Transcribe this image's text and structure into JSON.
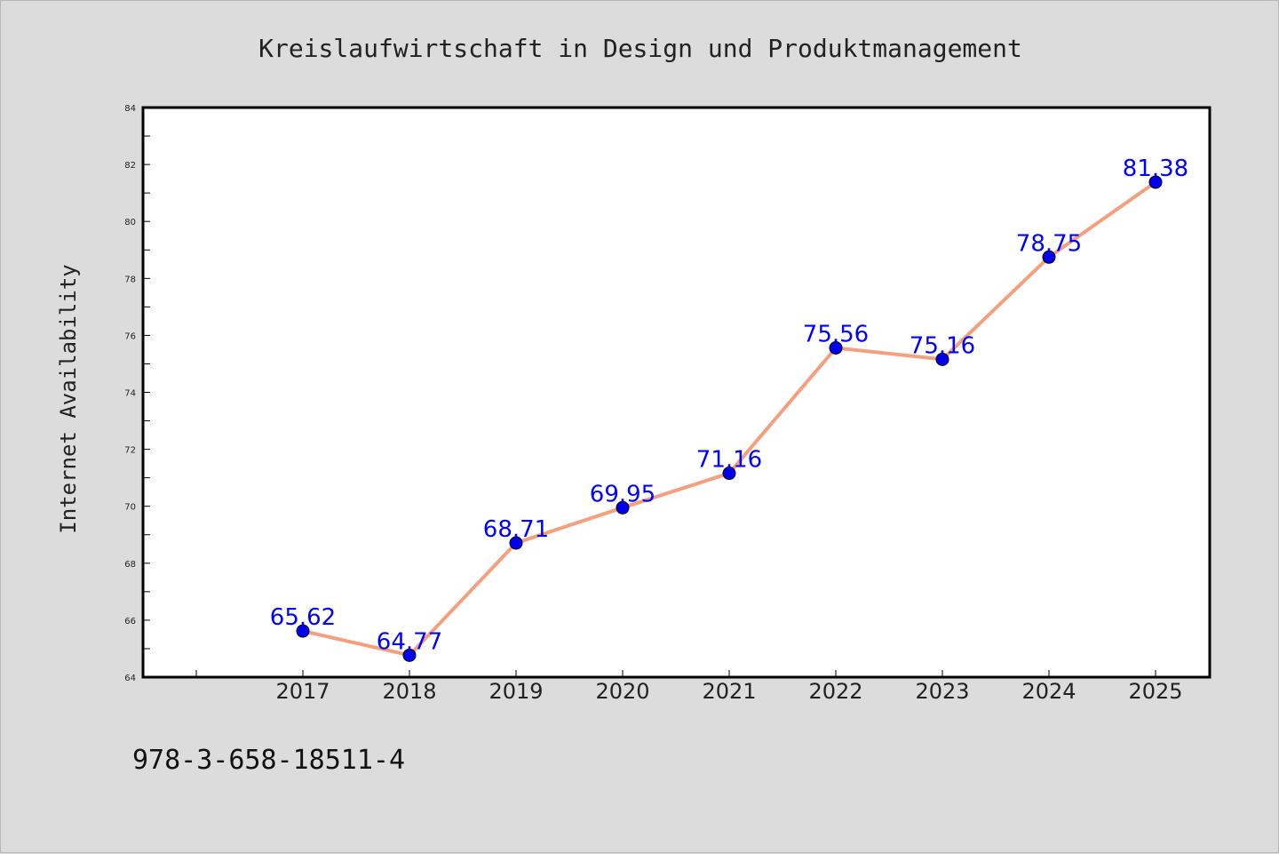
{
  "chart_data": {
    "type": "line",
    "title": "Kreislaufwirtschaft in Design und Produktmanagement",
    "xlabel": "",
    "ylabel": "Internet Availability",
    "x": [
      "2017",
      "2018",
      "2019",
      "2020",
      "2021",
      "2022",
      "2023",
      "2024",
      "2025"
    ],
    "series": [
      {
        "values": [
          65.62,
          64.77,
          68.71,
          69.95,
          71.16,
          75.56,
          75.16,
          78.75,
          81.38
        ],
        "labels": [
          "65.62",
          "64.77",
          "68.71",
          "69.95",
          "71.16",
          "75.56",
          "75.16",
          "78.75",
          "81.38"
        ],
        "line_color": "#f4a07e",
        "marker_color": "#0000ee"
      }
    ],
    "ylim": [
      64,
      84
    ],
    "yticks": [
      "64",
      "66",
      "68",
      "70",
      "72",
      "74",
      "76",
      "78",
      "80",
      "82",
      "84"
    ],
    "grid": false,
    "legend": "none",
    "footer": "978-3-658-18511-4"
  }
}
